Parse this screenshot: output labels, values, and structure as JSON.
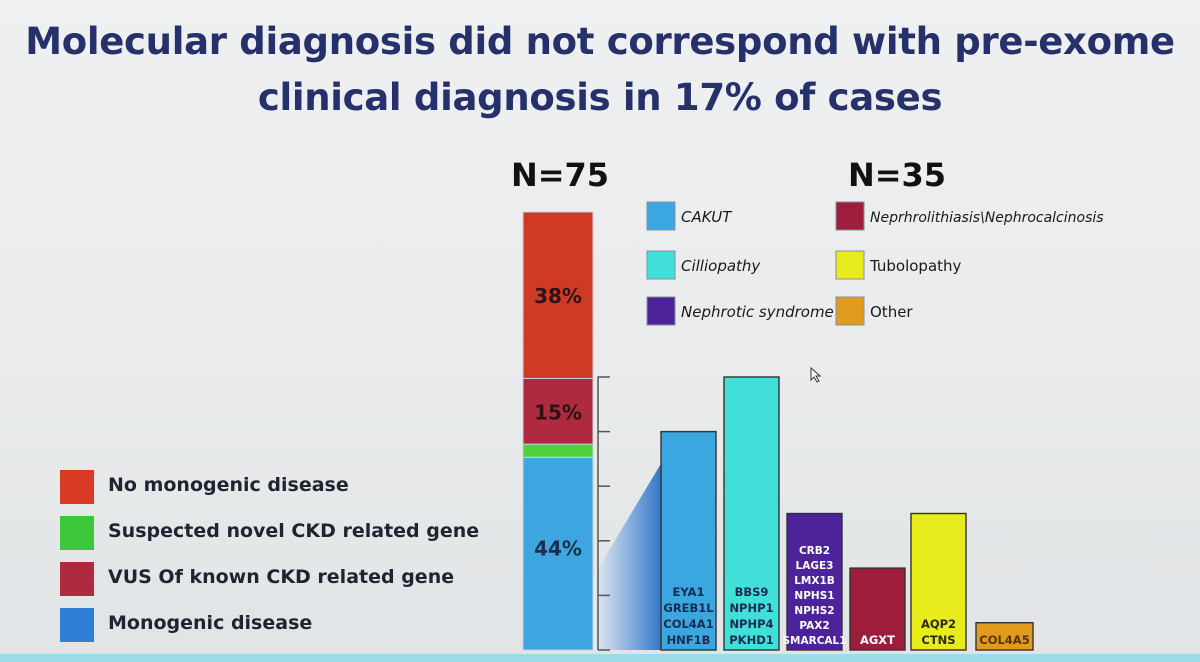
{
  "title": {
    "line1": "Molecular diagnosis did not correspond with pre-exome",
    "line2": "clinical diagnosis in 17% of cases"
  },
  "left_legend": [
    {
      "label": "No monogenic disease",
      "color": "#d83a24"
    },
    {
      "label": "Suspected novel CKD related gene",
      "color": "#3cc63a"
    },
    {
      "label": "VUS Of known CKD related gene",
      "color": "#b02a3f"
    },
    {
      "label": "Monogenic disease",
      "color": "#2f7fd6"
    }
  ],
  "chart_data": [
    {
      "type": "bar",
      "stacked": true,
      "title": "N=75",
      "series": [
        {
          "name": "Monogenic disease",
          "value": 44,
          "label": "44%",
          "color": "#3da5e0"
        },
        {
          "name": "Suspected novel CKD related gene",
          "value": 3,
          "label": "",
          "color": "#4cd23a"
        },
        {
          "name": "VUS Of known CKD related gene",
          "value": 15,
          "label": "15%",
          "color": "#b02a3f"
        },
        {
          "name": "No monogenic disease",
          "value": 38,
          "label": "38%",
          "color": "#d03a24"
        }
      ]
    },
    {
      "type": "bar",
      "title": "N=35",
      "yticks": [
        0,
        2,
        4,
        6,
        8,
        10,
        12
      ],
      "ylim": [
        0,
        12
      ],
      "legend": [
        {
          "label": "CAKUT",
          "color": "#3aa7e0"
        },
        {
          "label": "Cilliopathy",
          "color": "#40e0d8"
        },
        {
          "label": "Nephrotic syndrome",
          "color": "#4c239a"
        },
        {
          "label": "Neprhrolithiasis\\Nephrocalcinosis",
          "color": "#9e1d3c"
        },
        {
          "label": "Tubolopathy",
          "color": "#e8ec1c"
        },
        {
          "label": "Other",
          "color": "#e09a1c"
        }
      ],
      "categories": [
        "CAKUT",
        "Cilliopathy",
        "Nephrotic syndrome",
        "Neprhrolithiasis\\Nephrocalcinosis",
        "Tubolopathy",
        "Other"
      ],
      "values": [
        8,
        10,
        5,
        3,
        5,
        1
      ],
      "genes": [
        [
          "EYA1",
          "GREB1L",
          "COL4A1",
          "HNF1B"
        ],
        [
          "BBS9",
          "NPHP1",
          "NPHP4",
          "PKHD1"
        ],
        [
          "CRB2",
          "LAGE3",
          "LMX1B",
          "NPHS1",
          "NPHS2",
          "PAX2",
          "SMARCAL1"
        ],
        [
          "AGXT"
        ],
        [
          "AQP2",
          "CTNS"
        ],
        [
          "COL4A5"
        ]
      ],
      "colors": [
        "#3aa7e0",
        "#40e0d8",
        "#4c239a",
        "#9e1d3c",
        "#e8ec1c",
        "#e09a1c"
      ],
      "gene_text_colors": [
        "#1a2a50",
        "#1a2a50",
        "#ffffff",
        "#ffffff",
        "#2a2a10",
        "#5a3200"
      ]
    }
  ]
}
